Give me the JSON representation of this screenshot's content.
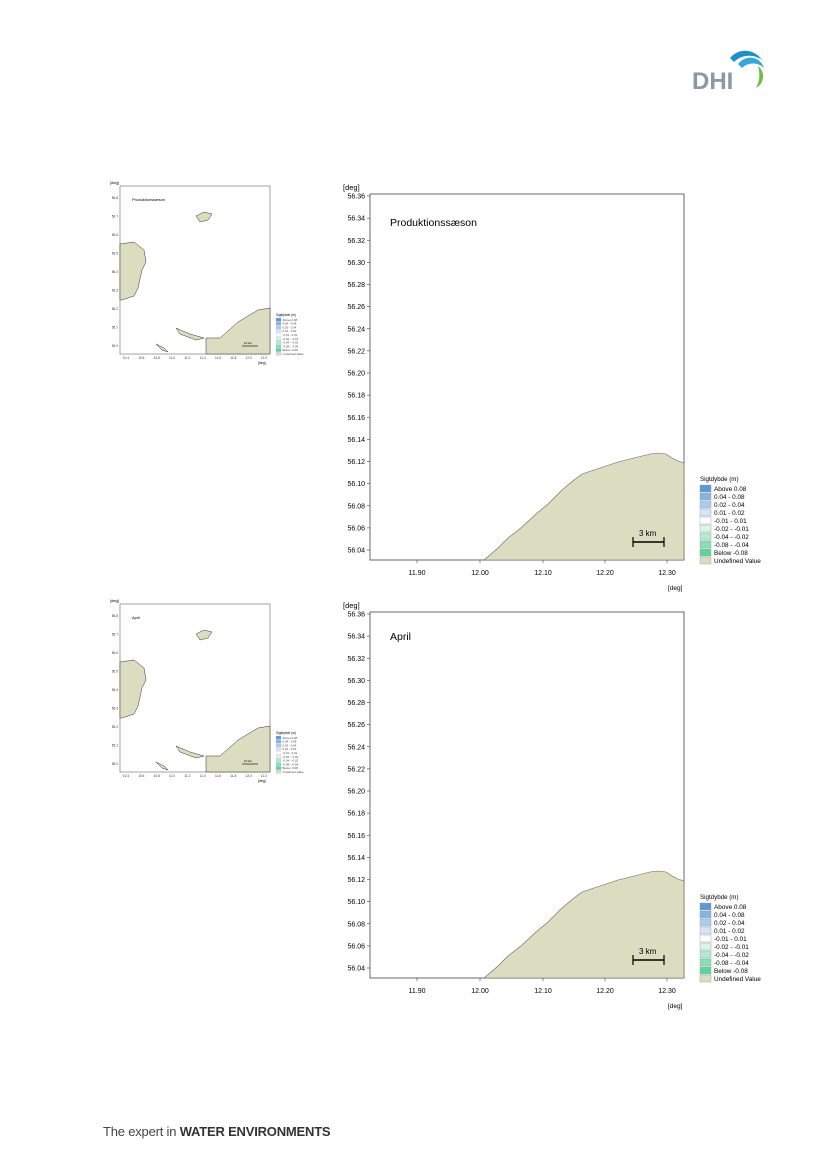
{
  "brand": {
    "logo_text": "DHI",
    "colors": {
      "logo_grey": "#8a9aa5",
      "wave_blue": "#1f8fc8",
      "wave_green": "#6fbe44"
    }
  },
  "footer": {
    "prefix": "The expert in ",
    "emphasis": "WATER ENVIRONMENTS"
  },
  "maps": [
    {
      "title": "Produktionssæson",
      "y_unit": "[deg]",
      "x_unit": "[deg]",
      "y_ticks": [
        "56.36",
        "56.34",
        "56.32",
        "56.30",
        "56.28",
        "56.26",
        "56.24",
        "56.22",
        "56.20",
        "56.18",
        "56.16",
        "56.14",
        "56.12",
        "56.10",
        "56.08",
        "56.06",
        "56.04"
      ],
      "x_ticks": [
        "11.90",
        "12.00",
        "12.10",
        "12.20",
        "12.30"
      ],
      "scale_bar": "3 km",
      "legend": {
        "title": "Sigtdybde (m)",
        "items": [
          {
            "label": "Above  0.08",
            "color": "#5b9bd5"
          },
          {
            "label": "0.04 -  0.08",
            "color": "#86b5e3"
          },
          {
            "label": "0.02 -  0.04",
            "color": "#aacdee"
          },
          {
            "label": "0.01 -  0.02",
            "color": "#d3e5f6"
          },
          {
            "label": "-0.01 -  0.01",
            "color": "#ffffff"
          },
          {
            "label": "-0.02 - -0.01",
            "color": "#d9f4e8"
          },
          {
            "label": "-0.04 - -0.02",
            "color": "#b3ead1"
          },
          {
            "label": "-0.08 - -0.04",
            "color": "#86dfb6"
          },
          {
            "label": "Below -0.08",
            "color": "#5cd49d"
          },
          {
            "label": "Undefined Value",
            "color": "#dcdcc0"
          }
        ]
      }
    },
    {
      "title": "April",
      "y_unit": "[deg]",
      "x_unit": "[deg]",
      "y_ticks": [
        "56.36",
        "56.34",
        "56.32",
        "56.30",
        "56.28",
        "56.26",
        "56.24",
        "56.22",
        "56.20",
        "56.18",
        "56.16",
        "56.14",
        "56.12",
        "56.10",
        "56.08",
        "56.06",
        "56.04"
      ],
      "x_ticks": [
        "11.90",
        "12.00",
        "12.10",
        "12.20",
        "12.30"
      ],
      "scale_bar": "3 km",
      "legend": {
        "title": "Sigtdybde (m)",
        "items": [
          {
            "label": "Above  0.08",
            "color": "#5b9bd5"
          },
          {
            "label": "0.04 -  0.08",
            "color": "#86b5e3"
          },
          {
            "label": "0.02 -  0.04",
            "color": "#aacdee"
          },
          {
            "label": "0.01 -  0.02",
            "color": "#d3e5f6"
          },
          {
            "label": "-0.01 -  0.01",
            "color": "#ffffff"
          },
          {
            "label": "-0.02 - -0.01",
            "color": "#d9f4e8"
          },
          {
            "label": "-0.04 - -0.02",
            "color": "#b3ead1"
          },
          {
            "label": "-0.08 - -0.04",
            "color": "#86dfb6"
          },
          {
            "label": "Below -0.08",
            "color": "#5cd49d"
          },
          {
            "label": "Undefined Value",
            "color": "#dcdcc0"
          }
        ]
      }
    }
  ],
  "overview_maps": [
    {
      "title": "Produktionssæson",
      "y_unit": "[deg]",
      "x_unit": "[deg]",
      "y_ticks": [
        "56.8",
        "56.7",
        "56.6",
        "56.5",
        "56.4",
        "56.3",
        "56.2",
        "56.1",
        "56.0"
      ],
      "x_ticks": [
        "10.4",
        "10.6",
        "10.8",
        "11.0",
        "11.2",
        "11.4",
        "11.6",
        "11.8",
        "12.0",
        "12.2"
      ],
      "scale_bar": "10 km",
      "legend_title": "Sigtdybde (m)",
      "legend_items": [
        "Above 0.08",
        "0.04 - 0.08",
        "0.02 - 0.04",
        "0.01 - 0.02",
        "-0.01 - 0.01",
        "-0.02 - -0.01",
        "-0.04 - -0.02",
        "-0.08 - -0.04",
        "Below -0.08",
        "Undefined Value"
      ]
    },
    {
      "title": "April",
      "y_unit": "[deg]",
      "x_unit": "[deg]",
      "y_ticks": [
        "56.8",
        "56.7",
        "56.6",
        "56.5",
        "56.4",
        "56.3",
        "56.2",
        "56.1",
        "56.0"
      ],
      "x_ticks": [
        "10.4",
        "10.6",
        "10.8",
        "11.0",
        "11.2",
        "11.4",
        "11.6",
        "11.8",
        "12.0",
        "12.2"
      ],
      "scale_bar": "10 km",
      "legend_title": "Sigtdybde (m)",
      "legend_items": [
        "Above 0.08",
        "0.04 - 0.08",
        "0.02 - 0.04",
        "0.01 - 0.02",
        "-0.01 - 0.01",
        "-0.02 - -0.01",
        "-0.04 - -0.02",
        "-0.08 - -0.04",
        "Below -0.08",
        "Undefined Value"
      ]
    }
  ]
}
